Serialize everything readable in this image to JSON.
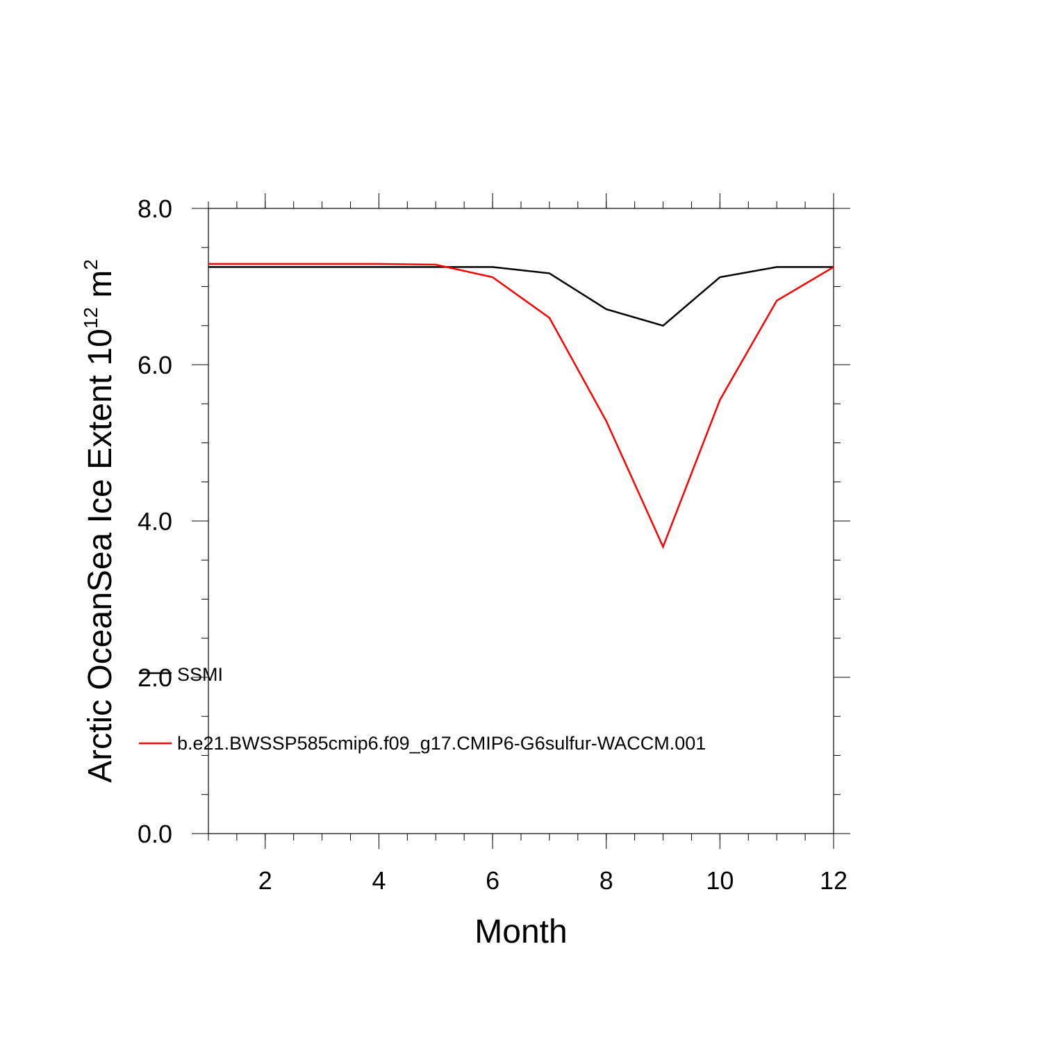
{
  "chart_data": {
    "type": "line",
    "xlabel": "Month",
    "ylabel": "Arctic OceanSea Ice Extent 10",
    "ylabel_exponent": "12",
    "ylabel_unit": " m",
    "ylabel_unit_exponent": "2",
    "xlim": [
      1,
      12
    ],
    "ylim": [
      0,
      8
    ],
    "x_ticks": [
      2,
      4,
      6,
      8,
      10,
      12
    ],
    "x_tick_labels": [
      "2",
      "4",
      "6",
      "8",
      "10",
      "12"
    ],
    "y_ticks": [
      0,
      2,
      4,
      6,
      8
    ],
    "y_tick_labels": [
      "0.0",
      "2.0",
      "4.0",
      "6.0",
      "8.0"
    ],
    "grid": false,
    "legend_position": "bottom-left",
    "x": [
      1,
      2,
      3,
      4,
      5,
      6,
      7,
      8,
      9,
      10,
      11,
      12
    ],
    "series": [
      {
        "name": "SSMI",
        "color": "#000000",
        "values": [
          7.25,
          7.25,
          7.25,
          7.25,
          7.25,
          7.25,
          7.17,
          6.71,
          6.5,
          7.12,
          7.25,
          7.25
        ]
      },
      {
        "name": "b.e21.BWSSP585cmip6.f09_g17.CMIP6-G6sulfur-WACCM.001",
        "color": "#ff0000",
        "values": [
          7.29,
          7.29,
          7.29,
          7.29,
          7.28,
          7.12,
          6.6,
          5.28,
          3.67,
          5.55,
          6.82,
          7.25
        ]
      }
    ]
  }
}
